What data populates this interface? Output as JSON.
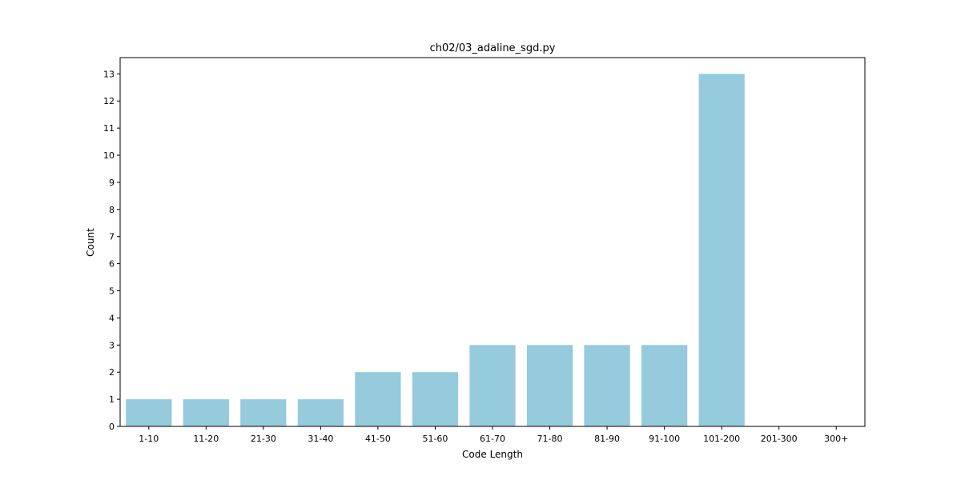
{
  "chart_data": {
    "type": "bar",
    "title": "ch02/03_adaline_sgd.py",
    "xlabel": "Code Length",
    "ylabel": "Count",
    "categories": [
      "1-10",
      "11-20",
      "21-30",
      "31-40",
      "41-50",
      "51-60",
      "61-70",
      "71-80",
      "81-90",
      "91-100",
      "101-200",
      "201-300",
      "300+"
    ],
    "values": [
      1,
      1,
      1,
      1,
      2,
      2,
      3,
      3,
      3,
      3,
      13,
      0,
      0
    ],
    "ylim": [
      0,
      13.6
    ],
    "yticks": [
      0,
      1,
      2,
      3,
      4,
      5,
      6,
      7,
      8,
      9,
      10,
      11,
      12,
      13
    ],
    "bar_color": "#96cadd",
    "grid": false,
    "legend": "none"
  }
}
